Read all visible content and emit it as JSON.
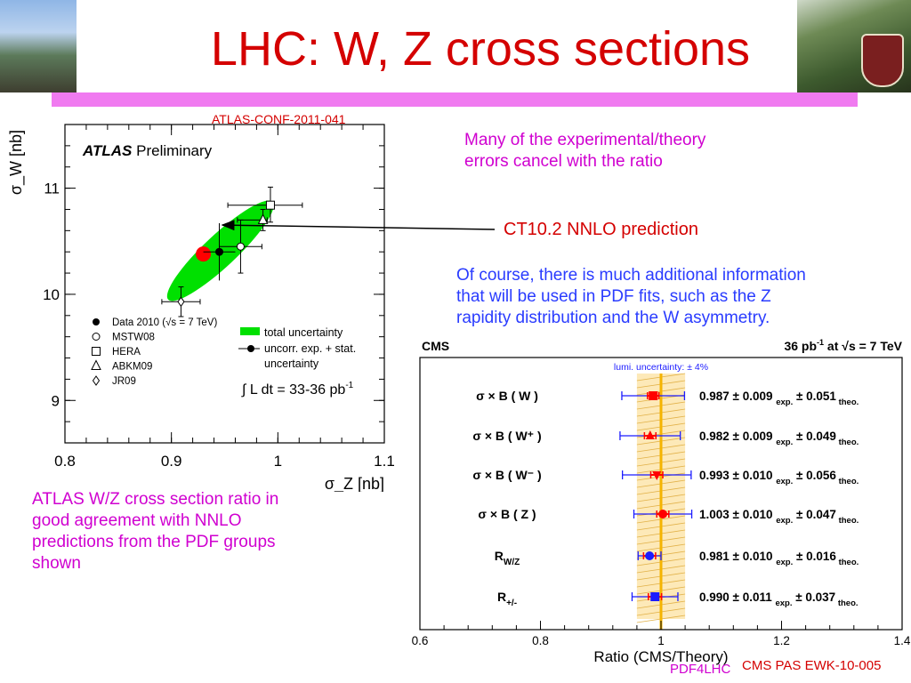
{
  "slide": {
    "title": "LHC: W, Z cross sections",
    "atlas_ref": "ATLAS-CONF-2011-041",
    "note_ratio": [
      "Many of the experimental/theory",
      "errors cancel with the ratio"
    ],
    "note_ct10": "CT10.2 NNLO prediction",
    "note_pdf": [
      "Of course, there is much additional information",
      "that will be used in PDF fits, such as the Z",
      "rapidity distribution and the W asymmetry."
    ],
    "note_atlas": [
      "ATLAS W/Z cross section ratio in",
      "good agreement with NNLO",
      "predictions from the PDF groups",
      "shown"
    ],
    "footer_left": "PDF4LHC",
    "footer_right": "CMS PAS EWK-10-005",
    "accent_red": "#d40000",
    "accent_magenta": "#d000d0",
    "accent_blue": "#2a3cff",
    "bar_color": "#f07af0"
  },
  "chart_data": [
    {
      "type": "scatter",
      "title_bold": "ATLAS",
      "title": "Preliminary",
      "xlabel": "σ_Z [nb]",
      "ylabel": "σ_W [nb]",
      "xlim": [
        0.8,
        1.1
      ],
      "ylim": [
        8.6,
        11.6
      ],
      "xticks": [
        "0.8",
        "0.9",
        "1",
        "1.1"
      ],
      "yticks": [
        "9",
        "10",
        "11"
      ],
      "points": [
        {
          "name": "Data 2010 (√s = 7 TeV)",
          "marker": "filled-circle",
          "x": 0.945,
          "y": 10.4,
          "xerr": [
            0.0,
            0.0
          ],
          "yerr": [
            0.0,
            0.0
          ]
        },
        {
          "name": "MSTW08",
          "marker": "open-circle",
          "x": 0.965,
          "y": 10.45,
          "xerr": [
            0.02,
            0.02
          ],
          "yerr": [
            0.25,
            0.25
          ]
        },
        {
          "name": "HERA",
          "marker": "open-square",
          "x": 0.993,
          "y": 10.84,
          "xerr": [
            0.04,
            0.03
          ],
          "yerr": [
            0.16,
            0.17
          ]
        },
        {
          "name": "ABKM09",
          "marker": "open-triangle",
          "x": 0.986,
          "y": 10.7,
          "xerr": [
            0.024,
            0.004
          ],
          "yerr": [
            0.1,
            0.1
          ]
        },
        {
          "name": "JR09",
          "marker": "open-diamond",
          "x": 0.909,
          "y": 9.93,
          "xerr": [
            0.018,
            0.018
          ],
          "yerr": [
            0.14,
            0.14
          ]
        },
        {
          "name": "CT10.2 NNLO prediction",
          "marker": "red-dot",
          "x": 0.93,
          "y": 10.38,
          "xerr": [
            0,
            0
          ],
          "yerr": [
            0,
            0
          ]
        }
      ],
      "data_point": {
        "x": 0.945,
        "y": 10.4,
        "xerr": 0.015,
        "yerr": 0.27
      },
      "ellipse": {
        "cx": 0.945,
        "cy": 10.4,
        "x_from": 0.897,
        "y_from": 9.95,
        "x_to": 0.995,
        "y_to": 10.87,
        "label": "total uncertainty"
      },
      "legend": {
        "entries": [
          "Data 2010 (√s = 7 TeV)",
          "MSTW08",
          "HERA",
          "ABKM09",
          "JR09"
        ],
        "ellipse_entry": "total uncertainty",
        "errbar_entry": [
          "uncorr. exp. + stat.",
          "uncertainty"
        ],
        "lumi": "∫ L dt = 33-36 pb",
        "lumi_sup": "-1"
      }
    },
    {
      "type": "scatter",
      "experiment": "CMS",
      "lumi_text": "36 pb",
      "lumi_sup": "-1",
      "energy_text": "at  √s = 7 TeV",
      "xlabel": "Ratio (CMS/Theory)",
      "xlim": [
        0.6,
        1.4
      ],
      "xticks": [
        "0.6",
        "0.8",
        "1",
        "1.2",
        "1.4"
      ],
      "lumi_band_label": "lumi. uncertainty:   ± 4%",
      "lumi_band": [
        0.96,
        1.04
      ],
      "rows": [
        {
          "label": "σ × B ( W )",
          "ratio": 0.987,
          "inner": 0.0095,
          "outer": 0.052,
          "marker": "square",
          "value": "0.987 ± 0.009",
          "exp": "exp.",
          "theo_val": " ± 0.051",
          "theo": "theo."
        },
        {
          "label": "σ × B ( W⁺ )",
          "ratio": 0.982,
          "inner": 0.0095,
          "outer": 0.05,
          "marker": "triangle-up",
          "value": "0.982 ± 0.009",
          "exp": "exp.",
          "theo_val": " ± 0.049",
          "theo": "theo."
        },
        {
          "label": "σ × B ( W⁻ )",
          "ratio": 0.993,
          "inner": 0.01,
          "outer": 0.057,
          "marker": "triangle-down",
          "value": "0.993 ± 0.010",
          "exp": "exp.",
          "theo_val": " ± 0.056",
          "theo": "theo."
        },
        {
          "label": "σ × B ( Z )",
          "ratio": 1.003,
          "inner": 0.01,
          "outer": 0.048,
          "marker": "circle",
          "value": "1.003 ± 0.010",
          "exp": "exp.",
          "theo_val": " ± 0.047",
          "theo": "theo."
        },
        {
          "label": "R_W/Z",
          "ratio": 0.981,
          "inner": 0.01,
          "outer": 0.019,
          "marker": "circle",
          "value": "0.981 ± 0.010",
          "exp": "exp.",
          "theo_val": " ± 0.016",
          "theo": "theo."
        },
        {
          "label": "R_+/-",
          "ratio": 0.99,
          "inner": 0.011,
          "outer": 0.038,
          "marker": "square",
          "value": "0.990 ± 0.011",
          "exp": "exp.",
          "theo_val": " ± 0.037",
          "theo": "theo."
        }
      ]
    }
  ]
}
